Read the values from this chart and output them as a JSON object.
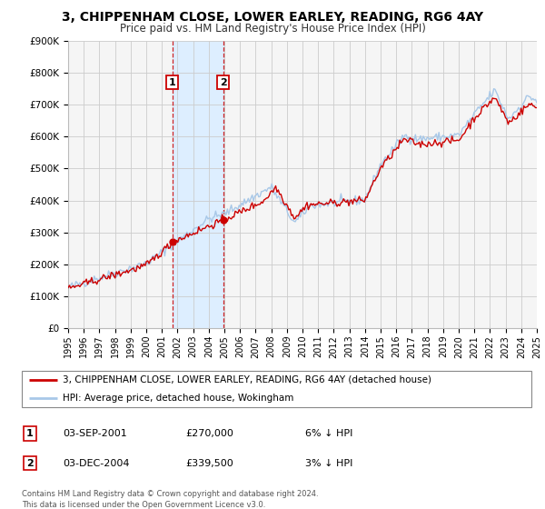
{
  "title": "3, CHIPPENHAM CLOSE, LOWER EARLEY, READING, RG6 4AY",
  "subtitle": "Price paid vs. HM Land Registry's House Price Index (HPI)",
  "ylim": [
    0,
    900000
  ],
  "yticks": [
    0,
    100000,
    200000,
    300000,
    400000,
    500000,
    600000,
    700000,
    800000,
    900000
  ],
  "ytick_labels": [
    "£0",
    "£100K",
    "£200K",
    "£300K",
    "£400K",
    "£500K",
    "£600K",
    "£700K",
    "£800K",
    "£900K"
  ],
  "x_start_year": 1995,
  "x_end_year": 2025,
  "sale1_date": 2001.67,
  "sale1_price": 270000,
  "sale1_display": "03-SEP-2001",
  "sale1_price_display": "£270,000",
  "sale1_hpi": "6% ↓ HPI",
  "sale2_date": 2004.92,
  "sale2_price": 339500,
  "sale2_display": "03-DEC-2004",
  "sale2_price_display": "£339,500",
  "sale2_hpi": "3% ↓ HPI",
  "hpi_line_color": "#a8c8e8",
  "sale_line_color": "#cc0000",
  "sale_marker_color": "#cc0000",
  "shading_color": "#ddeeff",
  "legend_label_sale": "3, CHIPPENHAM CLOSE, LOWER EARLEY, READING, RG6 4AY (detached house)",
  "legend_label_hpi": "HPI: Average price, detached house, Wokingham",
  "footer_text": "Contains HM Land Registry data © Crown copyright and database right 2024.\nThis data is licensed under the Open Government Licence v3.0.",
  "background_color": "#ffffff",
  "plot_bg_color": "#f5f5f5"
}
